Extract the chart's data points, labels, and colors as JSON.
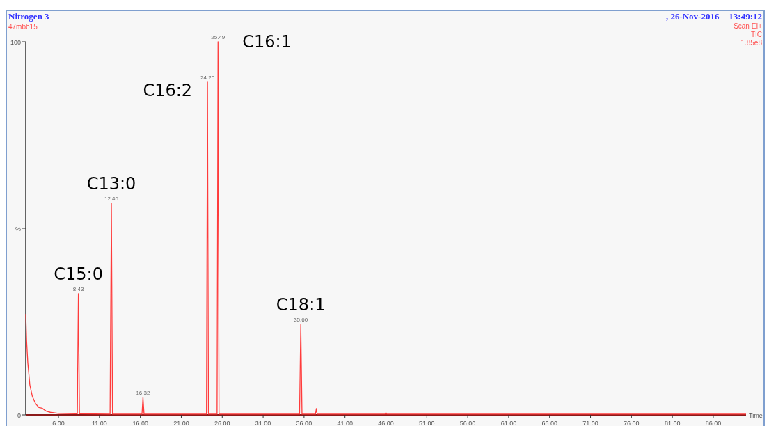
{
  "chart_data": {
    "type": "line",
    "title": "Nitrogen 3",
    "subtitle": "47mbb15",
    "xlabel": "Time",
    "xlim": [
      2,
      90
    ],
    "xticks": [
      {
        "value": 6,
        "label": "6.00"
      },
      {
        "value": 11,
        "label": "11.00"
      },
      {
        "value": 16,
        "label": "16.00"
      },
      {
        "value": 21,
        "label": "21.00"
      },
      {
        "value": 26,
        "label": "26.00"
      },
      {
        "value": 31,
        "label": "31.00"
      },
      {
        "value": 36,
        "label": "36.00"
      },
      {
        "value": 41,
        "label": "41.00"
      },
      {
        "value": 46,
        "label": "46.00"
      },
      {
        "value": 51,
        "label": "51.00"
      },
      {
        "value": 56,
        "label": "56.00"
      },
      {
        "value": 61,
        "label": "61.00"
      },
      {
        "value": 66,
        "label": "66.00"
      },
      {
        "value": 71,
        "label": "71.00"
      },
      {
        "value": 76,
        "label": "76.00"
      },
      {
        "value": 81,
        "label": "81.00"
      },
      {
        "value": 86,
        "label": "86.00"
      }
    ],
    "ylim": [
      0,
      100
    ],
    "yticks": [
      0,
      {
        "value": 50,
        "label": "%"
      },
      100
    ],
    "grid": false,
    "marker": "none",
    "line_style": "solid",
    "series": [
      {
        "color": "#ff3b3b",
        "x": [
          2.0,
          2.1,
          2.25,
          2.5,
          2.8,
          3.2,
          3.6,
          4.0,
          4.5,
          5.0,
          6.0,
          8.0,
          8.3,
          8.43,
          8.56,
          12.3,
          12.46,
          12.6,
          16.2,
          16.32,
          16.45,
          24.08,
          24.2,
          24.32,
          25.37,
          25.49,
          25.61,
          35.45,
          35.6,
          35.75,
          37.4,
          37.5,
          37.6,
          45.9,
          46.0,
          46.1,
          90
        ],
        "values": [
          27,
          20,
          14,
          8,
          5,
          3,
          2,
          1.8,
          1,
          0.7,
          0.4,
          0.3,
          0.3,
          32.5,
          0.3,
          0.2,
          56.7,
          0.2,
          0.2,
          4.7,
          0.2,
          0.2,
          89.2,
          0.2,
          0.2,
          100,
          0.2,
          0.2,
          24.3,
          0.2,
          0.2,
          1.7,
          0.2,
          0.2,
          0.6,
          0.2,
          0.2
        ]
      }
    ],
    "annotations": [
      ", 26-Nov-2016 + 13:49:12",
      "Scan EI+",
      "TIC",
      "1.85e8",
      {
        "text": "8.43",
        "x": 8.43,
        "y": 32.5
      },
      {
        "text": "C15:0",
        "x": 8.43,
        "y": 32.5
      },
      {
        "text": "12.46",
        "x": 12.46,
        "y": 56.7
      },
      {
        "text": "C13:0",
        "x": 12.46,
        "y": 56.7
      },
      {
        "text": "16.32",
        "x": 16.32,
        "y": 4.7
      },
      {
        "text": "24.20",
        "x": 24.2,
        "y": 89.2
      },
      {
        "text": "C16:2",
        "x": 24.2,
        "y": 89.2
      },
      {
        "text": "25.49",
        "x": 25.49,
        "y": 100
      },
      {
        "text": "C16:1",
        "x": 25.49,
        "y": 100
      },
      {
        "text": "35.60",
        "x": 35.6,
        "y": 24.3
      },
      {
        "text": "C18:1",
        "x": 35.6,
        "y": 24.3
      }
    ]
  }
}
